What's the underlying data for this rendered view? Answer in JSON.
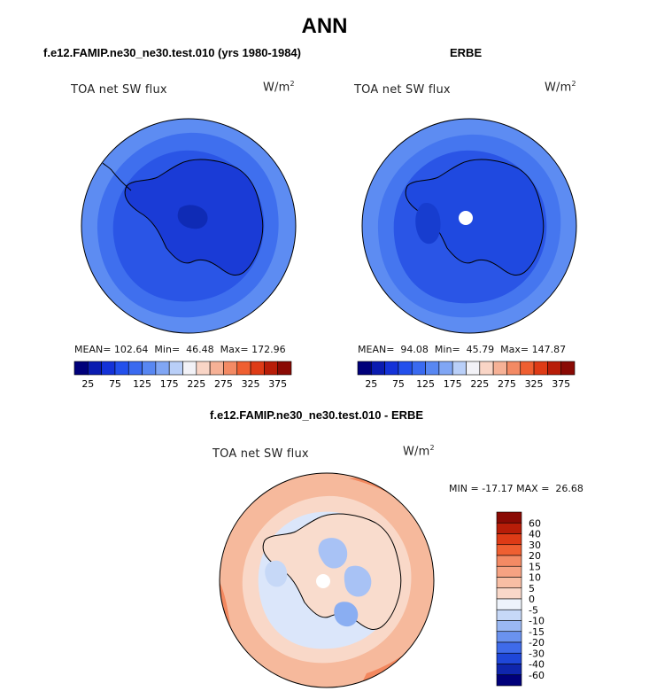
{
  "figure": {
    "title": "ANN",
    "units_base": "W/m",
    "units_exp": "2"
  },
  "panels": [
    {
      "title": "f.e12.FAMIP.ne30_ne30.test.010 (yrs 1980-1984)",
      "field": "TOA net SW flux",
      "stats": {
        "mean_label": "MEAN=",
        "mean": "102.64",
        "min_label": "Min=",
        "min": "46.48",
        "max_label": "Max=",
        "max": "172.96"
      }
    },
    {
      "title": "ERBE",
      "field": "TOA net SW flux",
      "stats": {
        "mean_label": "MEAN=",
        "mean": "94.08",
        "min_label": "Min=",
        "min": "45.79",
        "max_label": "Max=",
        "max": "147.87"
      }
    },
    {
      "title": "f.e12.FAMIP.ne30_ne30.test.010 - ERBE",
      "field": "TOA net SW flux",
      "stats": {
        "min_label": "MIN =",
        "min": "-17.17",
        "max_label": "MAX =",
        "max": "26.68"
      }
    }
  ],
  "chart_data": [
    {
      "type": "heatmap",
      "title": "f.e12.FAMIP.ne30_ne30.test.010 (yrs 1980-1984)",
      "projection": "south-polar stereographic",
      "variable": "TOA net SW flux",
      "units": "W/m2",
      "mean": 102.64,
      "min": 46.48,
      "max": 172.96,
      "colorbar": {
        "orientation": "horizontal",
        "levels": [
          25,
          50,
          75,
          100,
          125,
          150,
          175,
          200,
          225,
          250,
          275,
          300,
          325,
          350,
          375
        ],
        "tick_labels": [
          "25",
          "75",
          "125",
          "175",
          "225",
          "275",
          "325",
          "375"
        ],
        "colors": [
          "#00007a",
          "#0a1bb0",
          "#1432d8",
          "#2350ec",
          "#3a6af0",
          "#5887f2",
          "#80a6f4",
          "#b9cff8",
          "#f2f2f7",
          "#f9d5c6",
          "#f6b196",
          "#f38a64",
          "#ef5f31",
          "#de3b16",
          "#b81d08",
          "#8a0a04"
        ]
      },
      "region_values": {
        "outer_ring": 130,
        "middle_ring": 110,
        "inner_ring": 90,
        "ice_sheet": 60,
        "interior_low": 47
      }
    },
    {
      "type": "heatmap",
      "title": "ERBE",
      "projection": "south-polar stereographic",
      "variable": "TOA net SW flux",
      "units": "W/m2",
      "mean": 94.08,
      "min": 45.79,
      "max": 147.87,
      "colorbar": {
        "orientation": "horizontal",
        "levels": [
          25,
          50,
          75,
          100,
          125,
          150,
          175,
          200,
          225,
          250,
          275,
          300,
          325,
          350,
          375
        ],
        "tick_labels": [
          "25",
          "75",
          "125",
          "175",
          "225",
          "275",
          "325",
          "375"
        ],
        "colors": [
          "#00007a",
          "#0a1bb0",
          "#1432d8",
          "#2350ec",
          "#3a6af0",
          "#5887f2",
          "#80a6f4",
          "#b9cff8",
          "#f2f2f7",
          "#f9d5c6",
          "#f6b196",
          "#f38a64",
          "#ef5f31",
          "#de3b16",
          "#b81d08",
          "#8a0a04"
        ]
      },
      "region_values": {
        "outer_ring": 125,
        "middle_ring": 105,
        "inner_ring": 90,
        "ice_sheet": 70,
        "interior_low": 55
      },
      "missing_pole": true
    },
    {
      "type": "heatmap",
      "title": "f.e12.FAMIP.ne30_ne30.test.010 - ERBE",
      "projection": "south-polar stereographic",
      "variable": "TOA net SW flux",
      "units": "W/m2",
      "min": -17.17,
      "max": 26.68,
      "colorbar": {
        "orientation": "vertical",
        "tick_labels": [
          "60",
          "40",
          "30",
          "20",
          "15",
          "10",
          "5",
          "0",
          "-5",
          "-10",
          "-15",
          "-20",
          "-30",
          "-40",
          "-60"
        ],
        "colors": [
          "#8a0a04",
          "#b81d08",
          "#de3b16",
          "#ef5f31",
          "#f38a64",
          "#f6a282",
          "#f8bea4",
          "#f9d8c9",
          "#eef3fb",
          "#c6d8f7",
          "#9ab8f3",
          "#6a92ef",
          "#3f6bea",
          "#1f47d9",
          "#0f26ad",
          "#00007a"
        ]
      },
      "region_values": {
        "ocean_outer": 12,
        "ocean_mid": 4,
        "coastal_ring": -3,
        "interior_patches": -8
      },
      "missing_pole": true
    }
  ]
}
